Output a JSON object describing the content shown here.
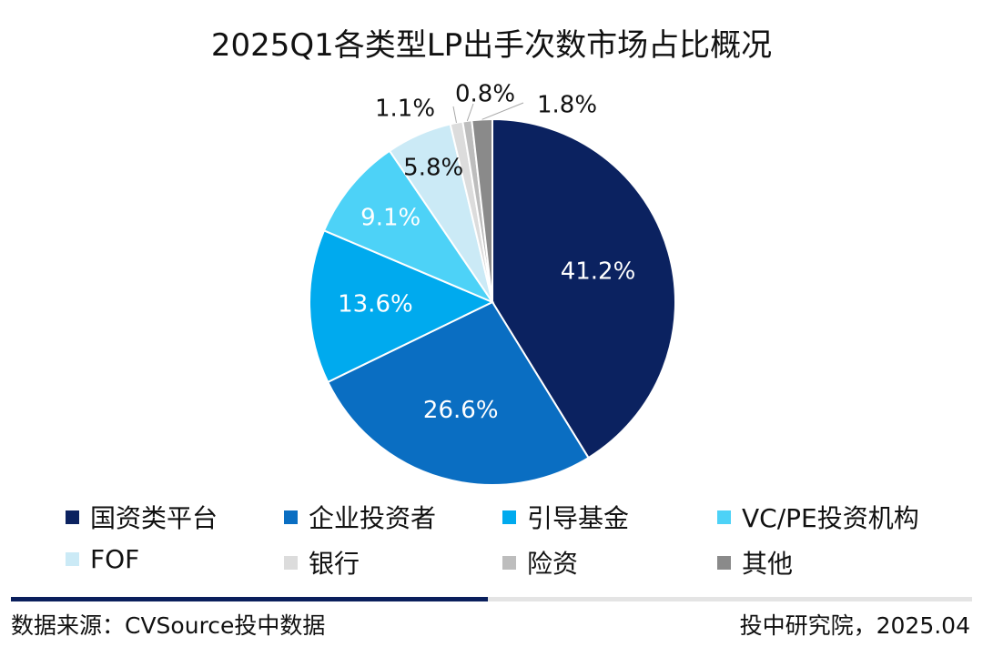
{
  "title": "2025Q1各类型LP出手次数市场占比概况",
  "chart_data": {
    "type": "pie",
    "title": "2025Q1各类型LP出手次数市场占比概况",
    "unit": "%",
    "slices": [
      {
        "name": "国资类平台",
        "value": 41.2,
        "label": "41.2%",
        "color": "#0b2260"
      },
      {
        "name": "企业投资者",
        "value": 26.6,
        "label": "26.6%",
        "color": "#0a6ec2"
      },
      {
        "name": "引导基金",
        "value": 13.6,
        "label": "13.6%",
        "color": "#00aaee"
      },
      {
        "name": "VC/PE投资机构",
        "value": 9.1,
        "label": "9.1%",
        "color": "#4dd2f7"
      },
      {
        "name": "FOF",
        "value": 5.8,
        "label": "5.8%",
        "color": "#cbeaf6"
      },
      {
        "name": "银行",
        "value": 1.1,
        "label": "1.1%",
        "color": "#dcdcdc"
      },
      {
        "name": "险资",
        "value": 0.8,
        "label": "0.8%",
        "color": "#bdbdbd"
      },
      {
        "name": "其他",
        "value": 1.8,
        "label": "1.8%",
        "color": "#8a8a8a"
      }
    ],
    "legend_position": "bottom"
  },
  "footer": {
    "source": "数据来源：CVSource投中数据",
    "publisher": "投中研究院，2025.04"
  }
}
